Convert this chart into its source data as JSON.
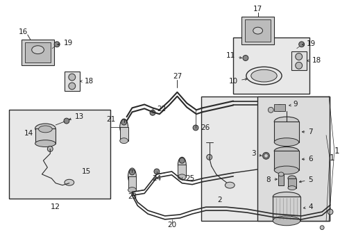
{
  "bg_color": "#ffffff",
  "lc": "#2a2a2a",
  "gray_light": "#e8e8e8",
  "gray_mid": "#bbbbbb",
  "gray_dark": "#888888",
  "font_size": 7.5,
  "font_color": "#1a1a1a"
}
